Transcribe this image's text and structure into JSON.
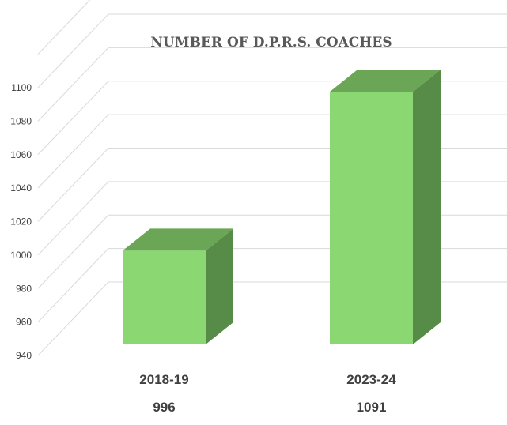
{
  "chart_data": {
    "type": "bar",
    "title": "NUMBER OF D.P.R.S. COACHES",
    "categories": [
      "2018-19",
      "2023-24"
    ],
    "values": [
      996,
      1091
    ],
    "value_labels": [
      "996",
      "1091"
    ],
    "ylim": [
      940,
      1100
    ],
    "yticks": [
      "940",
      "960",
      "980",
      "1000",
      "1020",
      "1040",
      "1060",
      "1080",
      "1100"
    ],
    "xlabel": "",
    "ylabel": "",
    "grid": true,
    "legend": "none",
    "style": "3d-column",
    "colors": {
      "bar_front": "#8bd873",
      "bar_top": "#6aa655",
      "bar_side": "#578b48",
      "gridline": "#d9d9d9",
      "text": "#404040",
      "title": "#595959"
    }
  }
}
